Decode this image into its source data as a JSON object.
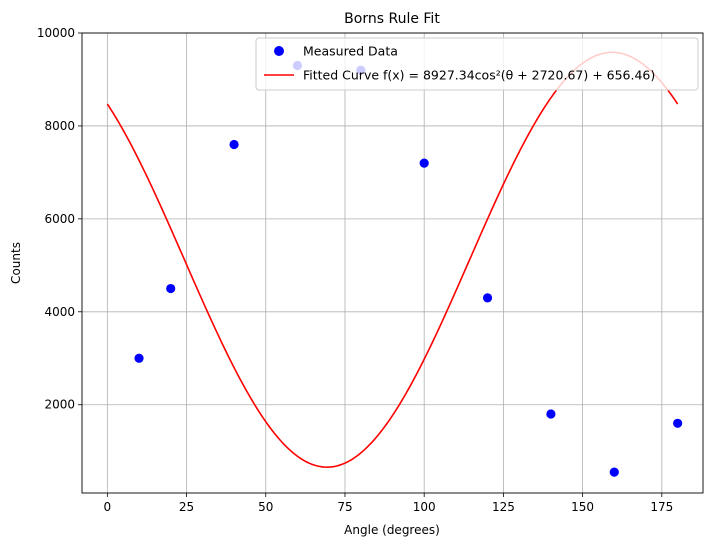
{
  "chart_data": {
    "type": "scatter",
    "title": "Borns Rule Fit",
    "xlabel": "Angle (degrees)",
    "ylabel": "Counts",
    "xlim": [
      -8,
      188
    ],
    "ylim": [
      100,
      10000
    ],
    "xticks": [
      0,
      25,
      50,
      75,
      100,
      125,
      150,
      175
    ],
    "yticks": [
      2000,
      4000,
      6000,
      8000,
      10000
    ],
    "grid": true,
    "legend_position": "top-right",
    "series": [
      {
        "name": "Measured Data",
        "kind": "scatter",
        "color": "#0000ff",
        "x": [
          10,
          20,
          40,
          60,
          80,
          100,
          120,
          140,
          160,
          180
        ],
        "y": [
          3000,
          4500,
          7600,
          9300,
          9200,
          7200,
          4300,
          1800,
          550,
          1600
        ]
      },
      {
        "name": "Fitted Curve f(x) = 8927.34cos²(θ + 2720.67) + 656.46)",
        "kind": "line",
        "color": "#ff0000",
        "equation": {
          "A": 8927.34,
          "phase_deg": 2720.67,
          "C": 656.46
        },
        "x_range": [
          0,
          180
        ]
      }
    ]
  }
}
